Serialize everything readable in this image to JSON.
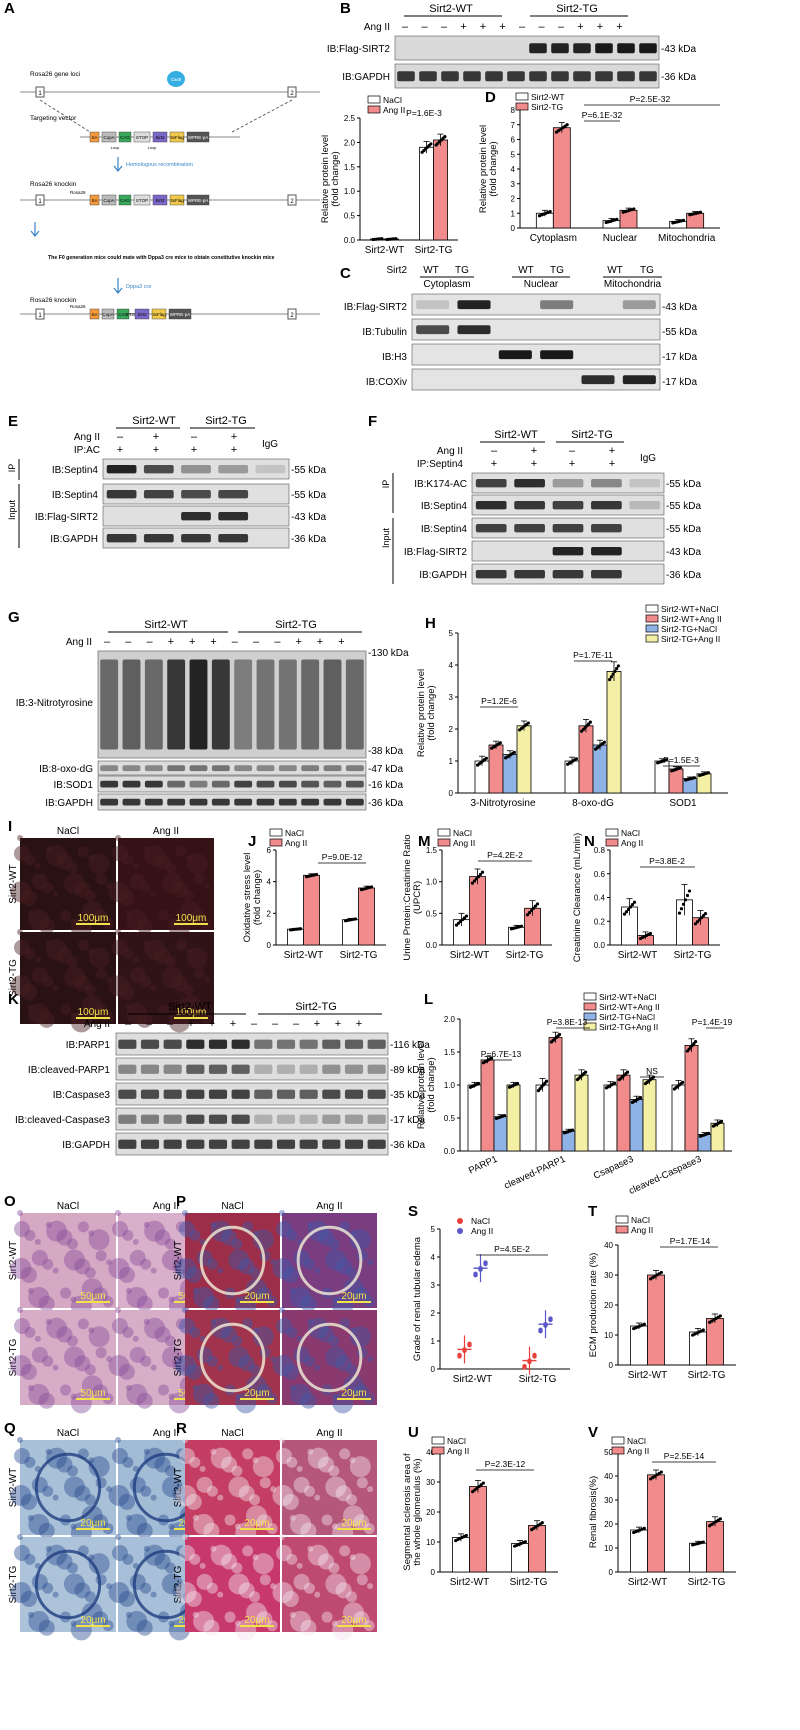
{
  "panels": {
    "A": {
      "letter": "A",
      "gene_loci": "Rosa26 gene loci",
      "targeting": "Targeting vector",
      "homologous": "Homologous recombination",
      "knockin": "Rosa26 knockin",
      "f0_text": "The F0 generation mice could mate with Dppa3 cre mice to obtain constitutive knockin mice",
      "dppa3": "Dppa3 cre",
      "knockin2": "Rosa26 knockin",
      "cas9": "Cas9",
      "box_labels": [
        "SA",
        "CopA",
        "CAG",
        "STOP",
        "Sirt2",
        "3xFlag",
        "WPRE-pA"
      ],
      "exon1": "1",
      "exon2": "2",
      "rosa26": "Rosa26",
      "loxp": "Loxp"
    },
    "B": {
      "letter": "B",
      "groups": [
        "Sirt2-WT",
        "Sirt2-TG"
      ],
      "row_label": "Ang II",
      "signs": [
        "–",
        "–",
        "–",
        "+",
        "+",
        "+",
        "–",
        "–",
        "–",
        "+",
        "+",
        "+"
      ],
      "blots": [
        "IB:Flag-SIRT2",
        "IB:GAPDH"
      ],
      "kda": [
        "-43 kDa",
        "-36 kDa"
      ]
    },
    "C": {
      "letter": "C",
      "sirt2": "Sirt2",
      "cols": [
        "WT",
        "TG",
        "WT",
        "TG",
        "WT",
        "TG"
      ],
      "fractions": [
        "Cytoplasm",
        "Nuclear",
        "Mitochondria"
      ],
      "blots": [
        "IB:Flag-SIRT2",
        "IB:Tubulin",
        "IB:H3",
        "IB:COXiv"
      ],
      "kda": [
        "-43 kDa",
        "-55 kDa",
        "-17 kDa",
        "-17 kDa"
      ]
    },
    "D": {
      "letter": "D"
    },
    "E": {
      "letter": "E",
      "groups": [
        "Sirt2-WT",
        "Sirt2-TG"
      ],
      "angii": "Ang II",
      "ip": "IP:AC",
      "igg": "IgG",
      "signs": [
        "–",
        "+",
        "–",
        "+"
      ],
      "ip_signs": [
        "+",
        "+",
        "+",
        "+"
      ],
      "side_ip": "IP",
      "side_input": "Input",
      "blots": [
        "IB:Septin4",
        "IB:Septin4",
        "IB:Flag-SIRT2",
        "IB:GAPDH"
      ],
      "kda": [
        "-55 kDa",
        "-55 kDa",
        "-43 kDa",
        "-36 kDa"
      ]
    },
    "F": {
      "letter": "F",
      "groups": [
        "Sirt2-WT",
        "Sirt2-TG"
      ],
      "angii": "Ang II",
      "ip": "IP:Septin4",
      "igg": "IgG",
      "signs": [
        "–",
        "+",
        "–",
        "+"
      ],
      "ip_signs": [
        "+",
        "+",
        "+",
        "+"
      ],
      "side_ip": "IP",
      "side_input": "Input",
      "blots": [
        "IB:K174-AC",
        "IB:Septin4",
        "IB:Septin4",
        "IB:Flag-SIRT2",
        "IB:GAPDH"
      ],
      "kda": [
        "-55 kDa",
        "-55 kDa",
        "-55 kDa",
        "-43 kDa",
        "-36 kDa"
      ]
    },
    "G": {
      "letter": "G",
      "groups": [
        "Sirt2-WT",
        "Sirt2-TG"
      ],
      "angii": "Ang II",
      "signs": [
        "–",
        "–",
        "–",
        "+",
        "+",
        "+",
        "–",
        "–",
        "–",
        "+",
        "+",
        "+"
      ],
      "blots": [
        "IB:3-Nitrotyrosine",
        "IB:8-oxo-dG",
        "IB:SOD1",
        "IB:GAPDH"
      ],
      "kda": [
        "-130 kDa",
        "-38 kDa",
        "-47 kDa",
        "-16 kDa",
        "-36 kDa"
      ]
    },
    "H": {
      "letter": "H"
    },
    "I": {
      "letter": "I",
      "cols": [
        "NaCl",
        "Ang II"
      ],
      "rows": [
        "Sirt2-WT",
        "Sirt2-TG"
      ],
      "scale": "100μm"
    },
    "J": {
      "letter": "J"
    },
    "M": {
      "letter": "M"
    },
    "N": {
      "letter": "N"
    },
    "K": {
      "letter": "K",
      "groups": [
        "Sirt2-WT",
        "Sirt2-TG"
      ],
      "angii": "Ang II",
      "signs": [
        "–",
        "–",
        "–",
        "+",
        "+",
        "+",
        "–",
        "–",
        "–",
        "+",
        "+",
        "+"
      ],
      "blots": [
        "IB:PARP1",
        "IB:cleaved-PARP1",
        "IB:Caspase3",
        "IB:cleaved-Caspase3",
        "IB:GAPDH"
      ],
      "kda": [
        "-116 kDa",
        "-89 kDa",
        "-35 kDa",
        "-17 kDa",
        "-36 kDa"
      ]
    },
    "L": {
      "letter": "L"
    },
    "O": {
      "letter": "O",
      "cols": [
        "NaCl",
        "Ang II"
      ],
      "rows": [
        "Sirt2-WT",
        "Sirt2-TG"
      ],
      "scale": "50μm"
    },
    "P": {
      "letter": "P",
      "cols": [
        "NaCl",
        "Ang II"
      ],
      "rows": [
        "Sirt2-WT",
        "Sirt2-TG"
      ],
      "scale": "20μm"
    },
    "Q": {
      "letter": "Q",
      "cols": [
        "NaCl",
        "Ang II"
      ],
      "rows": [
        "Sirt2-WT",
        "Sirt2-TG"
      ],
      "scale": "20μm"
    },
    "R": {
      "letter": "R",
      "cols": [
        "NaCl",
        "Ang II"
      ],
      "rows": [
        "Sirt2-WT",
        "Sirt2-TG"
      ],
      "scale": "20μm"
    },
    "S": {
      "letter": "S"
    },
    "T": {
      "letter": "T"
    },
    "U": {
      "letter": "U"
    },
    "V": {
      "letter": "V"
    }
  },
  "chart_data": [
    {
      "id": "B",
      "type": "bar",
      "ylabel": "Relative protein level (fold change)",
      "ylim": [
        0,
        2.5
      ],
      "yticks": [
        0,
        0.5,
        1.0,
        1.5,
        2.0,
        2.5
      ],
      "categories": [
        "Sirt2-WT",
        "Sirt2-TG"
      ],
      "series": [
        {
          "name": "NaCl",
          "values": [
            0.02,
            1.9
          ]
        },
        {
          "name": "Ang II",
          "values": [
            0.02,
            2.05
          ]
        }
      ],
      "errors": [
        [
          0.01,
          0.12
        ],
        [
          0.01,
          0.12
        ]
      ],
      "colors": [
        "#ffffff",
        "#f28b8b"
      ],
      "legend": [
        "NaCl",
        "Ang II"
      ],
      "annotations": [
        {
          "text": "P=1.6E-3"
        }
      ]
    },
    {
      "id": "D",
      "type": "bar",
      "ylabel": "Relative protein level (fold change)",
      "ylim": [
        0,
        8
      ],
      "yticks": [
        0,
        1,
        2,
        3,
        4,
        5,
        6,
        7,
        8
      ],
      "categories": [
        "Cytoplasm",
        "Nuclear",
        "Mitochondria"
      ],
      "series": [
        {
          "name": "Sirt2-WT",
          "values": [
            1.0,
            0.5,
            0.45
          ]
        },
        {
          "name": "Sirt2-TG",
          "values": [
            6.8,
            1.2,
            1.0
          ]
        }
      ],
      "errors": [
        [
          0.2,
          0.15,
          0.12
        ],
        [
          0.35,
          0.15,
          0.12
        ]
      ],
      "colors": [
        "#ffffff",
        "#f28b8b"
      ],
      "legend": [
        "Sirt2-WT",
        "Sirt2-TG"
      ],
      "annotations": [
        {
          "text": "P=2.5E-32"
        },
        {
          "text": "P=6.1E-32"
        }
      ]
    },
    {
      "id": "H",
      "type": "bar",
      "ylabel": "Relative protein level (fold change)",
      "ylim": [
        0,
        5
      ],
      "yticks": [
        0,
        1,
        2,
        3,
        4,
        5
      ],
      "categories": [
        "3-Nitrotyrosine",
        "8-oxo-dG",
        "SOD1"
      ],
      "series": [
        {
          "name": "Sirt2-WT+NaCl",
          "values": [
            1.0,
            1.0,
            1.0
          ]
        },
        {
          "name": "Sirt2-WT+Ang II",
          "values": [
            1.5,
            2.1,
            0.75
          ]
        },
        {
          "name": "Sirt2-TG+NaCl",
          "values": [
            1.2,
            1.5,
            0.45
          ]
        },
        {
          "name": "Sirt2-TG+Ang II",
          "values": [
            2.1,
            3.8,
            0.6
          ]
        }
      ],
      "errors": [
        [
          0.15,
          0.12,
          0.07
        ],
        [
          0.12,
          0.2,
          0.07
        ],
        [
          0.12,
          0.15,
          0.05
        ],
        [
          0.15,
          0.3,
          0.06
        ]
      ],
      "colors": [
        "#ffffff",
        "#f28b8b",
        "#8fb3e6",
        "#f3f0a6"
      ],
      "legend": [
        "Sirt2-WT+NaCl",
        "Sirt2-WT+Ang II",
        "Sirt2-TG+NaCl",
        "Sirt2-TG+Ang II"
      ],
      "annotations": [
        {
          "text": "P=1.2E-6"
        },
        {
          "text": "P=1.7E-11"
        },
        {
          "text": "P=1.5E-3"
        }
      ]
    },
    {
      "id": "J",
      "type": "bar",
      "ylabel": "Oxidative stress level (fold change)",
      "ylim": [
        0,
        6
      ],
      "yticks": [
        0,
        2,
        4,
        6
      ],
      "categories": [
        "Sirt2-WT",
        "Sirt2-TG"
      ],
      "series": [
        {
          "name": "NaCl",
          "values": [
            1.0,
            1.6
          ]
        },
        {
          "name": "Ang II",
          "values": [
            4.4,
            3.6
          ]
        }
      ],
      "errors": [
        [
          0.05,
          0.08
        ],
        [
          0.1,
          0.12
        ]
      ],
      "colors": [
        "#ffffff",
        "#f28b8b"
      ],
      "legend": [
        "NaCl",
        "Ang II"
      ],
      "annotations": [
        {
          "text": "P=9.0E-12"
        }
      ]
    },
    {
      "id": "M",
      "type": "bar",
      "ylabel": "Urine Protein:Creatinine Ratio (UPCR)",
      "ylim": [
        0,
        1.5
      ],
      "yticks": [
        0,
        0.5,
        1.0,
        1.5
      ],
      "categories": [
        "Sirt2-WT",
        "Sirt2-TG"
      ],
      "series": [
        {
          "name": "NaCl",
          "values": [
            0.4,
            0.28
          ]
        },
        {
          "name": "Ang II",
          "values": [
            1.08,
            0.58
          ]
        }
      ],
      "errors": [
        [
          0.1,
          0.03
        ],
        [
          0.12,
          0.12
        ]
      ],
      "colors": [
        "#ffffff",
        "#f28b8b"
      ],
      "legend": [
        "NaCl",
        "Ang II"
      ],
      "annotations": [
        {
          "text": "P=4.2E-2"
        }
      ]
    },
    {
      "id": "N",
      "type": "bar",
      "ylabel": "Creatinine Clearance (mL/min)",
      "ylim": [
        0,
        0.8
      ],
      "yticks": [
        0,
        0.2,
        0.4,
        0.6,
        0.8
      ],
      "categories": [
        "Sirt2-WT",
        "Sirt2-TG"
      ],
      "series": [
        {
          "name": "NaCl",
          "values": [
            0.32,
            0.38
          ]
        },
        {
          "name": "Ang II",
          "values": [
            0.08,
            0.23
          ]
        }
      ],
      "errors": [
        [
          0.07,
          0.13
        ],
        [
          0.03,
          0.06
        ]
      ],
      "colors": [
        "#ffffff",
        "#f28b8b"
      ],
      "legend": [
        "NaCl",
        "Ang II"
      ],
      "annotations": [
        {
          "text": "P=3.8E-2"
        }
      ]
    },
    {
      "id": "L",
      "type": "bar",
      "ylabel": "Relative protein level (fold change)",
      "ylim": [
        0,
        2.0
      ],
      "yticks": [
        0,
        0.5,
        1.0,
        1.5,
        2.0
      ],
      "categories": [
        "PARP1",
        "cleaved-PARP1",
        "Csapase3",
        "cleaved-Caspase3"
      ],
      "series": [
        {
          "name": "Sirt2-WT+NaCl",
          "values": [
            1.0,
            1.0,
            1.0,
            1.0
          ]
        },
        {
          "name": "Sirt2-WT+Ang II",
          "values": [
            1.38,
            1.72,
            1.15,
            1.6
          ]
        },
        {
          "name": "Sirt2-TG+NaCl",
          "values": [
            0.52,
            0.3,
            0.78,
            0.25
          ]
        },
        {
          "name": "Sirt2-TG+Ang II",
          "values": [
            1.0,
            1.15,
            1.08,
            0.42
          ]
        }
      ],
      "errors": [
        [
          0.04,
          0.1,
          0.05,
          0.07
        ],
        [
          0.05,
          0.08,
          0.08,
          0.1
        ],
        [
          0.03,
          0.03,
          0.05,
          0.03
        ],
        [
          0.04,
          0.08,
          0.07,
          0.05
        ]
      ],
      "colors": [
        "#ffffff",
        "#f28b8b",
        "#8fb3e6",
        "#f3f0a6"
      ],
      "legend": [
        "Sirt2-WT+NaCl",
        "Sirt2-WT+Ang II",
        "Sirt2-TG+NaCl",
        "Sirt2-TG+Ang II"
      ],
      "annotations": [
        {
          "text": "P=6.7E-13"
        },
        {
          "text": "P=3.8E-13"
        },
        {
          "text": "NS"
        },
        {
          "text": "P=1.4E-19"
        }
      ]
    },
    {
      "id": "S",
      "type": "scatter",
      "ylabel": "Grade of renal tubular edema",
      "ylim": [
        0,
        5
      ],
      "yticks": [
        0,
        1,
        2,
        3,
        4,
        5
      ],
      "categories": [
        "Sirt2-WT",
        "Sirt2-TG"
      ],
      "series": [
        {
          "name": "NaCl",
          "values": [
            0.7,
            0.3
          ]
        },
        {
          "name": "Ang II",
          "values": [
            3.6,
            1.6
          ]
        }
      ],
      "errors": [
        [
          0.5,
          0.5
        ],
        [
          0.5,
          0.5
        ]
      ],
      "colors": [
        "#e8413c",
        "#5b57c9"
      ],
      "legend": [
        "NaCl",
        "Ang II"
      ],
      "annotations": [
        {
          "text": "P=4.5E-2"
        }
      ]
    },
    {
      "id": "T",
      "type": "bar",
      "ylabel": "ECM production rate (%)",
      "ylim": [
        0,
        40
      ],
      "yticks": [
        0,
        10,
        20,
        30,
        40
      ],
      "categories": [
        "Sirt2-WT",
        "Sirt2-TG"
      ],
      "series": [
        {
          "name": "NaCl",
          "values": [
            13,
            11
          ]
        },
        {
          "name": "Ang II",
          "values": [
            30,
            15.5
          ]
        }
      ],
      "errors": [
        [
          1,
          1.2
        ],
        [
          1.5,
          1.5
        ]
      ],
      "colors": [
        "#ffffff",
        "#f28b8b"
      ],
      "legend": [
        "NaCl",
        "Ang II"
      ],
      "annotations": [
        {
          "text": "P=1.7E-14"
        }
      ]
    },
    {
      "id": "U",
      "type": "bar",
      "ylabel": "Segmental sclerosis area of the whole glomerulus (%)",
      "ylim": [
        0,
        40
      ],
      "yticks": [
        0,
        10,
        20,
        30,
        40
      ],
      "categories": [
        "Sirt2-WT",
        "Sirt2-TG"
      ],
      "series": [
        {
          "name": "NaCl",
          "values": [
            11.5,
            9.5
          ]
        },
        {
          "name": "Ang II",
          "values": [
            28.5,
            15.5
          ]
        }
      ],
      "errors": [
        [
          1.2,
          1
        ],
        [
          2,
          1.6
        ]
      ],
      "colors": [
        "#ffffff",
        "#f28b8b"
      ],
      "legend": [
        "NaCl",
        "Ang II"
      ],
      "annotations": [
        {
          "text": "P=2.3E-12"
        }
      ]
    },
    {
      "id": "V",
      "type": "bar",
      "ylabel": "Renal fibrosis(%)",
      "ylim": [
        0,
        50
      ],
      "yticks": [
        0,
        10,
        20,
        30,
        40,
        50
      ],
      "categories": [
        "Sirt2-WT",
        "Sirt2-TG"
      ],
      "series": [
        {
          "name": "NaCl",
          "values": [
            17.5,
            12
          ]
        },
        {
          "name": "Ang II",
          "values": [
            40.5,
            21
          ]
        }
      ],
      "errors": [
        [
          1.2,
          0.8
        ],
        [
          2,
          2
        ]
      ],
      "colors": [
        "#ffffff",
        "#f28b8b"
      ],
      "legend": [
        "NaCl",
        "Ang II"
      ],
      "annotations": [
        {
          "text": "P=2.5E-14"
        }
      ]
    }
  ]
}
